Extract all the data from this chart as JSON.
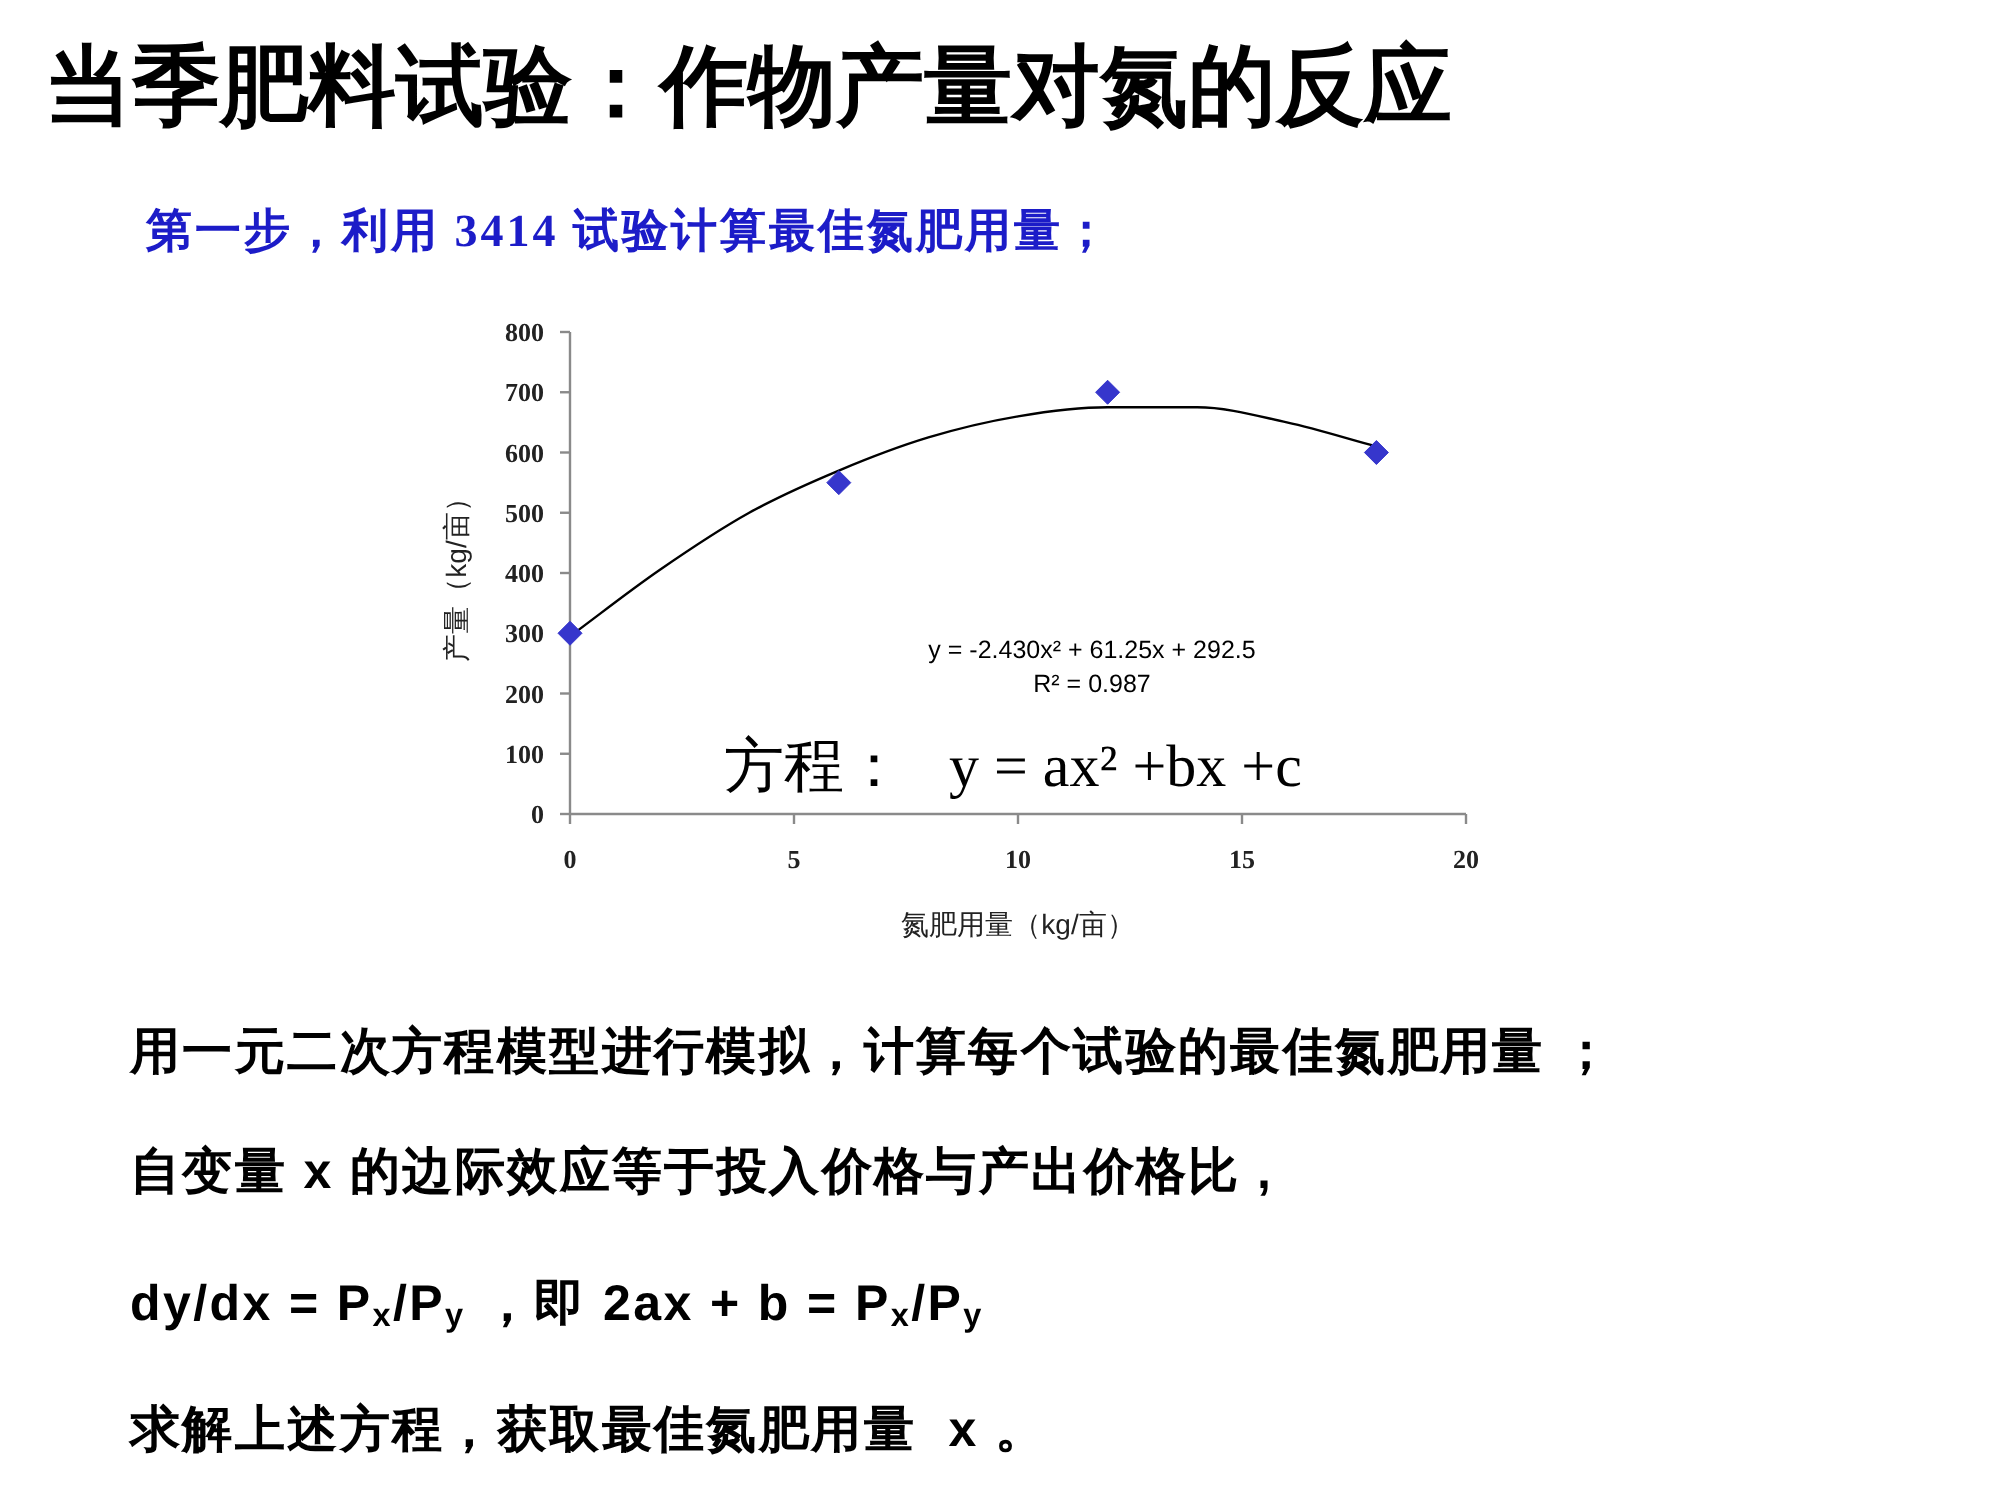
{
  "chart_data": {
    "type": "scatter",
    "title": "当季肥料试验：作物产量对氮的反应",
    "subtitle": "第一步，利用 3414 试验计算最佳氮肥用量；",
    "xlabel": "氮肥用量（kg/亩）",
    "ylabel": "产量（kg/亩）",
    "series": [
      {
        "color": "#3636cc",
        "marker": "diamond",
        "x": [
          0,
          6,
          12,
          18
        ],
        "values": [
          300,
          550,
          700,
          600
        ]
      },
      {
        "type": "line",
        "color": "#000000",
        "marker": "none",
        "x": [
          0,
          2,
          4,
          6,
          8,
          10,
          12,
          14,
          16,
          18
        ],
        "values": [
          295,
          405,
          500,
          570,
          625,
          660,
          675,
          675,
          650,
          610
        ]
      }
    ],
    "xlim": [
      0,
      20
    ],
    "xticks": [
      0,
      5,
      10,
      15,
      20
    ],
    "ylim": [
      0,
      800
    ],
    "yticks": [
      0,
      100,
      200,
      300,
      400,
      500,
      600,
      700,
      800
    ],
    "annotations": [
      "y = -2.430x² + 61.25x + 292.5",
      "R² = 0.987",
      "方程：   y = ax² +bx +c",
      "用一元二次方程模型进行模拟，计算每个试验的最佳氮肥用量 ；",
      "自变量 x 的边际效应等于投入价格与产出价格比 ,",
      "dy/dx = P$_{x}$/P$_{y}$ ，即 2ax + b = P$_{x}$/P$_{y}$",
      "求解上述方程，获取最佳氮肥用量  x 。"
    ]
  }
}
